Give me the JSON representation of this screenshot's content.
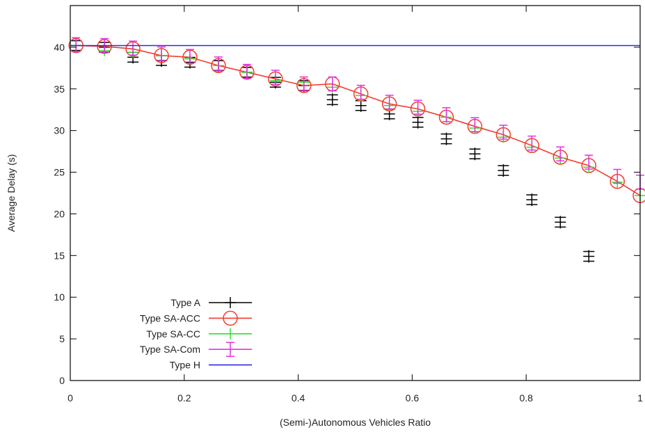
{
  "chart_data": {
    "type": "line",
    "title": "",
    "xlabel": "(Semi-)Autonomous Vehicles Ratio",
    "ylabel": "Average Delay (s)",
    "xlim": [
      0,
      1
    ],
    "ylim": [
      0,
      45
    ],
    "xticks": [
      0,
      0.2,
      0.4,
      0.6,
      0.8,
      1
    ],
    "xtick_labels": [
      "0",
      "0.2",
      "0.4",
      "0.6",
      "0.8",
      "1"
    ],
    "yticks": [
      0,
      5,
      10,
      15,
      20,
      25,
      30,
      35,
      40
    ],
    "ytick_labels": [
      "0",
      "5",
      "10",
      "15",
      "20",
      "25",
      "30",
      "35",
      "40"
    ],
    "grid": false,
    "legend_position": "bottom-left",
    "series": [
      {
        "name": "Type A",
        "color": "#000000",
        "marker": "plus-errorbar",
        "connected": false,
        "x": [
          0.01,
          0.06,
          0.11,
          0.16,
          0.21,
          0.26,
          0.31,
          0.36,
          0.41,
          0.46,
          0.51,
          0.56,
          0.61,
          0.66,
          0.71,
          0.76,
          0.81,
          0.86,
          0.91
        ],
        "y": [
          40.2,
          40.0,
          38.8,
          38.4,
          38.2,
          37.8,
          37.0,
          35.8,
          35.4,
          33.7,
          33.0,
          32.0,
          31.0,
          29.0,
          27.2,
          25.2,
          21.7,
          19.0,
          14.9
        ]
      },
      {
        "name": "Type SA-ACC",
        "color": "#f23a2e",
        "marker": "circle",
        "connected": true,
        "x": [
          0.01,
          0.06,
          0.11,
          0.16,
          0.21,
          0.26,
          0.31,
          0.36,
          0.41,
          0.46,
          0.51,
          0.56,
          0.61,
          0.66,
          0.71,
          0.76,
          0.81,
          0.86,
          0.91,
          0.96,
          1.0
        ],
        "y": [
          40.2,
          40.1,
          39.8,
          39.0,
          38.8,
          37.8,
          37.0,
          36.2,
          35.4,
          35.6,
          34.4,
          33.2,
          32.6,
          31.6,
          30.5,
          29.5,
          28.2,
          26.8,
          25.8,
          23.9,
          22.2
        ]
      },
      {
        "name": "Type SA-CC",
        "color": "#2ee02e",
        "marker": "plus",
        "connected": false,
        "x": [
          0.01,
          0.06,
          0.11,
          0.16,
          0.21,
          0.26,
          0.31,
          0.36,
          0.41,
          0.46,
          0.51,
          0.56,
          0.61,
          0.66,
          0.71,
          0.76,
          0.81,
          0.86,
          0.91,
          0.96,
          1.0
        ],
        "y": [
          40.2,
          39.6,
          39.4,
          39.0,
          38.6,
          37.8,
          37.0,
          36.0,
          35.8,
          35.2,
          34.2,
          33.0,
          32.3,
          31.6,
          30.3,
          29.2,
          28.0,
          26.7,
          25.6,
          23.8,
          22.2
        ]
      },
      {
        "name": "Type SA-Com",
        "color": "#e62ee6",
        "marker": "errorbar",
        "connected": false,
        "x": [
          0.01,
          0.06,
          0.11,
          0.16,
          0.21,
          0.26,
          0.31,
          0.36,
          0.41,
          0.46,
          0.51,
          0.56,
          0.61,
          0.66,
          0.71,
          0.76,
          0.81,
          0.86,
          0.91,
          0.96,
          1.0
        ],
        "y": [
          40.3,
          40.2,
          39.9,
          39.2,
          38.9,
          38.0,
          37.1,
          36.4,
          35.6,
          35.6,
          34.6,
          33.4,
          32.8,
          31.9,
          30.7,
          29.8,
          28.5,
          27.2,
          26.2,
          24.5,
          23.8
        ]
      },
      {
        "name": "Type H",
        "color": "#2a2ae6",
        "marker": "none",
        "connected": true,
        "x": [
          0,
          1
        ],
        "y": [
          40.2,
          40.2
        ]
      }
    ]
  }
}
